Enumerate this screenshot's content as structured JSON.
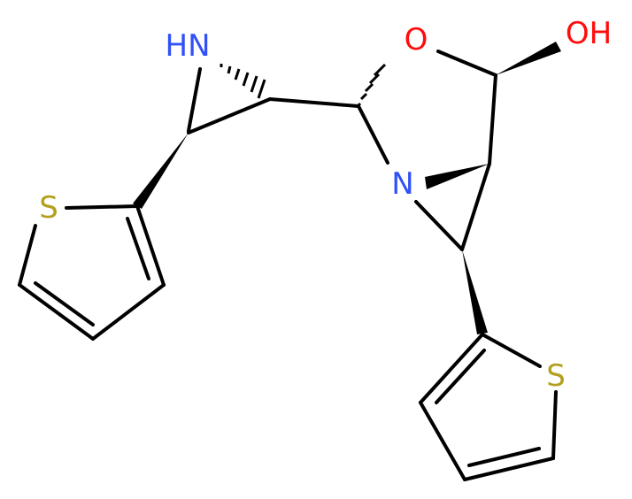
{
  "atoms": [
    {
      "label": "HN",
      "color": "#3050F8"
    },
    {
      "label": "O",
      "color": "#FF0D0D"
    },
    {
      "label": "OH",
      "color": "#FF0D0D"
    },
    {
      "label": "N",
      "color": "#3050F8"
    },
    {
      "label": "S",
      "color": "#B2A01E"
    },
    {
      "label": "S",
      "color": "#B2A01E"
    }
  ]
}
